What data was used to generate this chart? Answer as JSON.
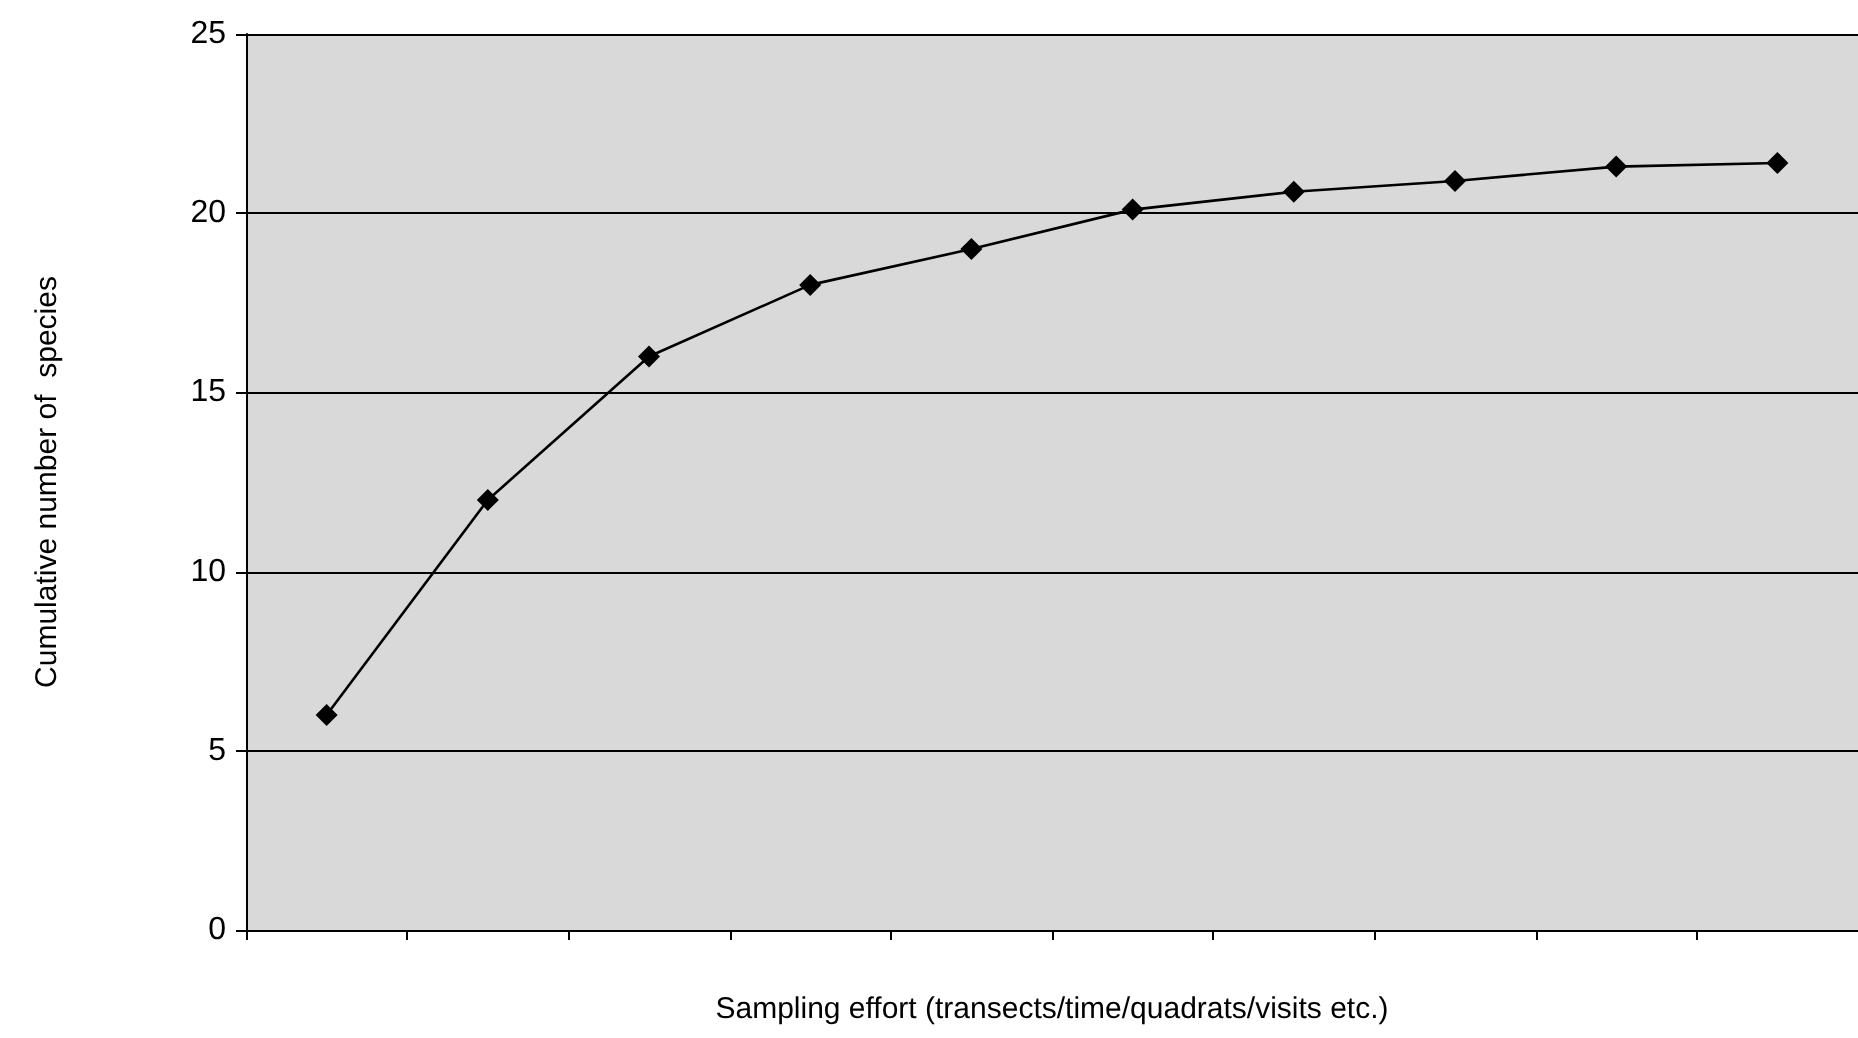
{
  "chart_data": {
    "type": "line",
    "xlabel": "Sampling effort (transects/time/quadrats/visits etc.)",
    "ylabel": "Cumulative number of  species",
    "categories": [
      null,
      null,
      null,
      null,
      null,
      null,
      null,
      null,
      null,
      null
    ],
    "series": [
      {
        "color": "#000000",
        "values": [
          6,
          12,
          16,
          18,
          19,
          20.1,
          20.6,
          20.9,
          21.3,
          21.4
        ]
      }
    ],
    "ylim": [
      0,
      25
    ],
    "yticks": [
      0,
      5,
      10,
      15,
      20,
      25
    ],
    "grid": "y",
    "marker": "diamond",
    "line_style": "solid"
  }
}
